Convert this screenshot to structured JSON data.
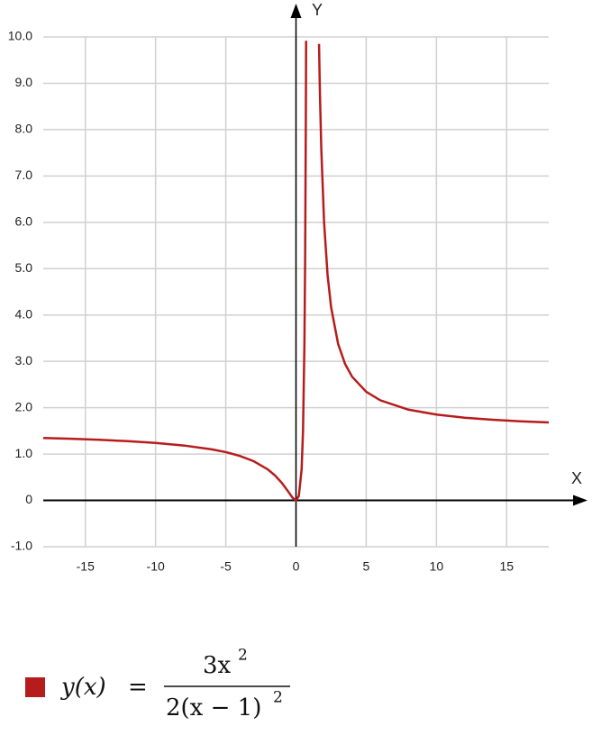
{
  "chart_data": {
    "type": "line",
    "x": [
      -18,
      -16,
      -14,
      -12,
      -10,
      -8,
      -6,
      -5,
      -4,
      -3,
      -2,
      -1.5,
      -1,
      -0.5,
      -0.25,
      0,
      0.2,
      0.4,
      0.5,
      0.6,
      0.65,
      0.7,
      0.72,
      1,
      1.64,
      1.7,
      1.8,
      2,
      2.25,
      2.5,
      3,
      3.5,
      4,
      5,
      6,
      8,
      10,
      12,
      14,
      16,
      18
    ],
    "series": [
      {
        "name": "y(x)",
        "color": "#b71c1c",
        "values": [
          1.346,
          1.329,
          1.307,
          1.278,
          1.24,
          1.185,
          1.102,
          1.042,
          0.96,
          0.844,
          0.667,
          0.54,
          0.375,
          0.167,
          0.06,
          0,
          0.094,
          0.667,
          1.5,
          3.375,
          5.173,
          8.167,
          9.918,
          null,
          9.85,
          8.847,
          7.594,
          6,
          4.86,
          4.167,
          3.375,
          2.94,
          2.667,
          2.344,
          2.16,
          1.959,
          1.852,
          1.785,
          1.74,
          1.707,
          1.682
        ]
      }
    ],
    "formula": {
      "equals": "=",
      "numerator": "3x",
      "numerator_exp": "2",
      "denominator": "2(x − 1)",
      "denominator_exp": "2"
    },
    "xlabel": "X",
    "ylabel": "Y",
    "xlim": [
      -18,
      18
    ],
    "ylim": [
      -1,
      10
    ],
    "xticks": [
      -15,
      -10,
      -5,
      0,
      5,
      10,
      15
    ],
    "yticks": [
      {
        "value": 10,
        "label": "10.0"
      },
      {
        "value": 9,
        "label": "9.0"
      },
      {
        "value": 8,
        "label": "8.0"
      },
      {
        "value": 7,
        "label": "7.0"
      },
      {
        "value": 6,
        "label": "6.0"
      },
      {
        "value": 5,
        "label": "5.0"
      },
      {
        "value": 4,
        "label": "4.0"
      },
      {
        "value": 3,
        "label": "3.0"
      },
      {
        "value": 2,
        "label": "2.0"
      },
      {
        "value": 1,
        "label": "1.0"
      },
      0,
      {
        "value": -1,
        "label": "-1.0"
      }
    ],
    "grid": true
  }
}
